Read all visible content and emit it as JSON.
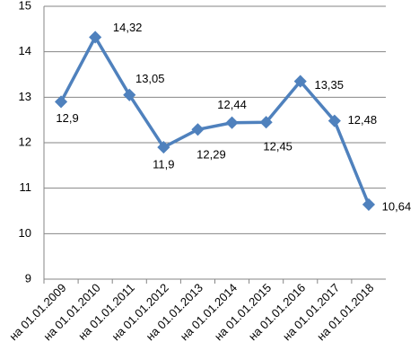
{
  "chart_data": {
    "type": "line",
    "categories": [
      "на 01.01.2009",
      "на 01.01.2010",
      "на 01.01.2011",
      "на 01.01.2012",
      "на 01.01.2013",
      "на 01.01.2014",
      "на 01.01.2015",
      "на 01.01.2016",
      "на 01.01.2017",
      "на 01.01.2018"
    ],
    "values": [
      12.9,
      14.32,
      13.05,
      11.9,
      12.29,
      12.44,
      12.45,
      13.35,
      12.48,
      10.64
    ],
    "value_labels": [
      "12,9",
      "14,32",
      "13,05",
      "11,9",
      "12,29",
      "12,44",
      "12,45",
      "13,35",
      "12,48",
      "10,64"
    ],
    "color": "#4f81bd",
    "ylim": [
      9,
      15
    ],
    "yticks": [
      9,
      10,
      11,
      12,
      13,
      14,
      15
    ],
    "grid": true
  }
}
